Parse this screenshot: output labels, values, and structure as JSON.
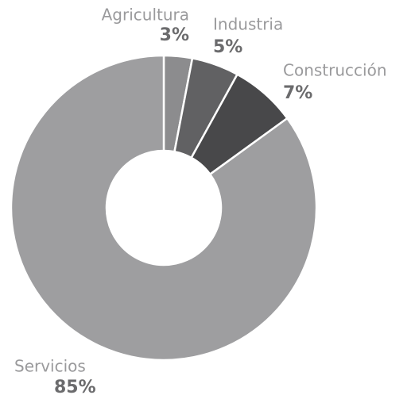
{
  "chart_data": {
    "type": "pie",
    "categories": [
      "Agricultura",
      "Industria",
      "Construcción",
      "Servicios"
    ],
    "values": [
      3,
      5,
      7,
      85
    ],
    "value_labels": [
      "3%",
      "5%",
      "7%",
      "85%"
    ],
    "colors": [
      "#8c8c8e",
      "#616163",
      "#48484a",
      "#9e9ea0"
    ],
    "donut": true
  }
}
